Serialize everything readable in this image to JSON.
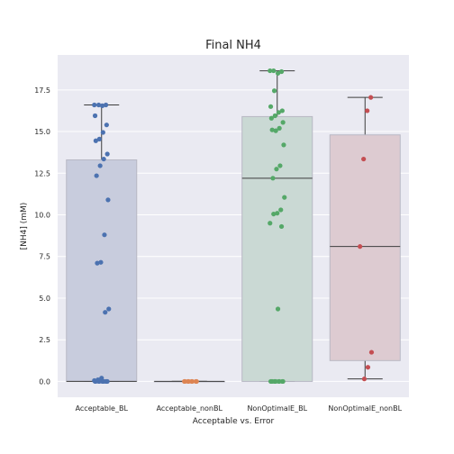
{
  "chart_data": {
    "type": "boxplot-strip",
    "title": "Final NH4",
    "xlabel": "Acceptable vs. Error",
    "ylabel": "[NH4] (mM)",
    "ylim": [
      -0.95,
      19.6
    ],
    "yticks": [
      0.0,
      2.5,
      5.0,
      7.5,
      10.0,
      12.5,
      15.0,
      17.5
    ],
    "ytick_labels": [
      "0.0",
      "2.5",
      "5.0",
      "7.5",
      "10.0",
      "12.5",
      "15.0",
      "17.5"
    ],
    "grid": true,
    "categories": [
      "Acceptable_BL",
      "Acceptable_nonBL",
      "NonOptimalE_BL",
      "NonOptimalE_nonBL"
    ],
    "colors": {
      "Acceptable_BL": {
        "box": "#c8ccdd",
        "point": "#4c72b0"
      },
      "Acceptable_nonBL": {
        "box": "#dcc8bd",
        "point": "#dd8452"
      },
      "NonOptimalE_BL": {
        "box": "#cad9d4",
        "point": "#55a868"
      },
      "NonOptimalE_nonBL": {
        "box": "#ddcbd1",
        "point": "#c44e52"
      },
      "background": "#eaeaf2",
      "grid": "#ffffff"
    },
    "boxes": [
      {
        "category": "Acceptable_BL",
        "q1": 0.0,
        "median": 0.0,
        "q3": 13.3,
        "whisker_low": 0.0,
        "whisker_high": 16.6
      },
      {
        "category": "Acceptable_nonBL",
        "q1": 0.0,
        "median": 0.0,
        "q3": 0.0,
        "whisker_low": 0.0,
        "whisker_high": 0.0
      },
      {
        "category": "NonOptimalE_BL",
        "q1": 0.0,
        "median": 12.2,
        "q3": 15.9,
        "whisker_low": 0.0,
        "whisker_high": 18.65
      },
      {
        "category": "NonOptimalE_nonBL",
        "q1": 1.25,
        "median": 8.1,
        "q3": 14.8,
        "whisker_low": 0.15,
        "whisker_high": 17.05
      }
    ],
    "points": [
      {
        "category": "Acceptable_BL",
        "values": [
          16.6,
          16.6,
          16.55,
          16.6,
          15.95,
          15.4,
          14.95,
          14.55,
          14.45,
          13.65,
          13.35,
          12.95,
          12.35,
          10.9,
          8.8,
          7.15,
          7.1,
          4.35,
          4.15,
          0.2,
          0.1,
          0.05,
          0.0,
          0.0,
          0.0,
          0.0,
          0.0,
          0.0,
          0.0,
          0.0,
          0.0,
          0.0
        ]
      },
      {
        "category": "Acceptable_nonBL",
        "values": [
          0.0,
          0.0,
          0.0,
          0.0,
          0.0,
          0.0,
          0.0,
          0.0
        ]
      },
      {
        "category": "NonOptimalE_BL",
        "values": [
          18.65,
          18.65,
          18.6,
          18.5,
          17.45,
          16.5,
          16.25,
          16.15,
          15.95,
          15.8,
          15.55,
          15.2,
          15.05,
          15.1,
          14.2,
          12.95,
          12.75,
          12.2,
          11.05,
          10.3,
          10.1,
          10.05,
          9.5,
          9.3,
          4.35,
          0.0,
          0.0,
          0.0,
          0.0,
          0.0,
          0.0,
          0.0,
          0.0,
          0.0,
          0.0
        ]
      },
      {
        "category": "NonOptimalE_nonBL",
        "values": [
          17.05,
          16.25,
          13.35,
          8.1,
          1.75,
          0.85,
          0.15
        ]
      }
    ]
  }
}
